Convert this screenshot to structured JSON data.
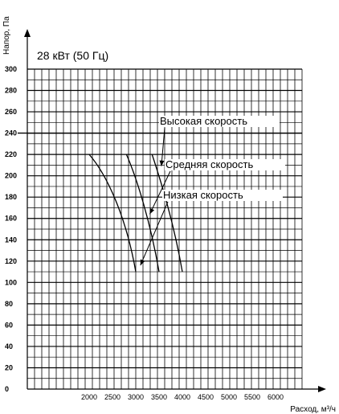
{
  "chart_data": {
    "type": "line",
    "title": "28 кВт (50 Гц)",
    "xlabel": "Расход, м³/ч",
    "ylabel": "Напор, Па",
    "ylim": [
      0,
      300
    ],
    "yticks": [
      0,
      20,
      40,
      60,
      80,
      100,
      120,
      140,
      160,
      180,
      200,
      220,
      240,
      260,
      280,
      300
    ],
    "xticks": [
      2000,
      2500,
      3000,
      3500,
      4000,
      4500,
      5000,
      5500,
      6000
    ],
    "grid": true,
    "series": [
      {
        "name": "Низкая скорость",
        "points": [
          [
            2000,
            220
          ],
          [
            2400,
            200
          ],
          [
            2800,
            160
          ],
          [
            3000,
            110
          ]
        ]
      },
      {
        "name": "Средняя скорость",
        "points": [
          [
            2800,
            220
          ],
          [
            3000,
            200
          ],
          [
            3300,
            160
          ],
          [
            3500,
            110
          ]
        ]
      },
      {
        "name": "Высокая скорость",
        "points": [
          [
            3350,
            220
          ],
          [
            3500,
            200
          ],
          [
            3800,
            160
          ],
          [
            4000,
            110
          ]
        ]
      }
    ],
    "annotations": [
      {
        "text": "Высокая скорость",
        "target": [
          3550,
          209
        ]
      },
      {
        "text": "Средняя скорость",
        "target": [
          3300,
          164
        ]
      },
      {
        "text": "Низкая скорость",
        "target": [
          3100,
          116
        ]
      }
    ]
  }
}
